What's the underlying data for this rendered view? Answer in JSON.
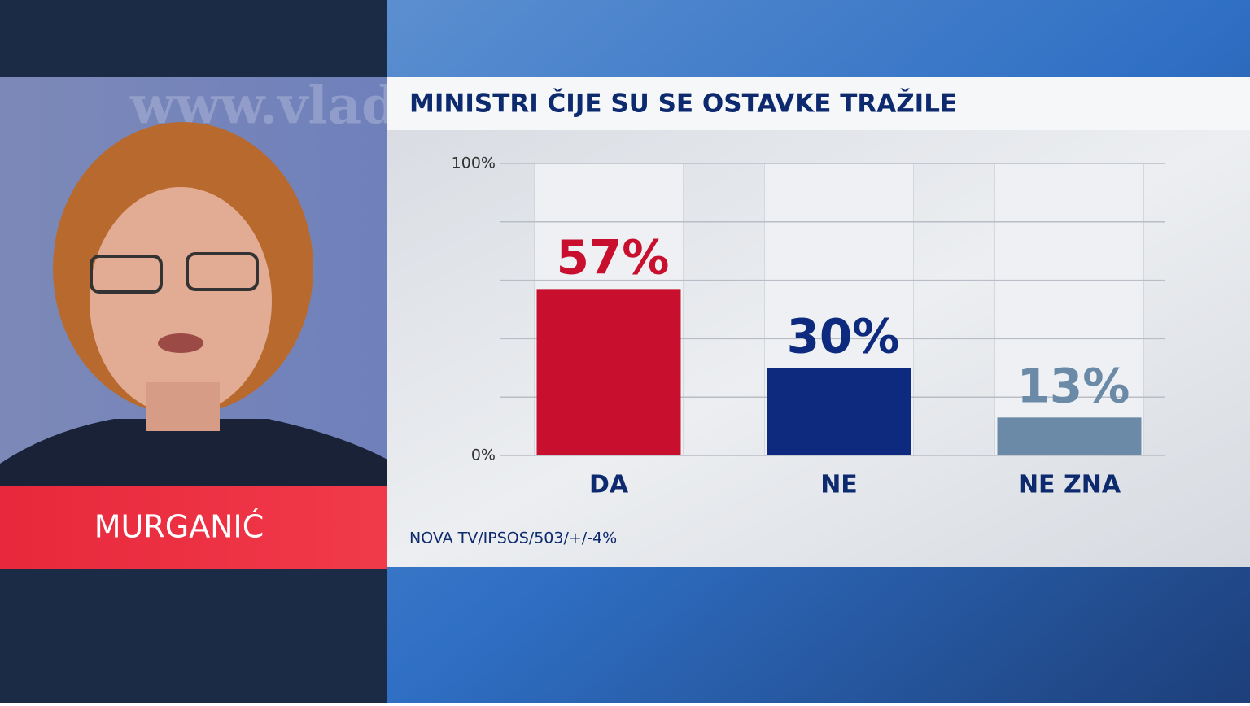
{
  "person": {
    "name": "MURGANIĆ",
    "background_text": "www.vlad"
  },
  "chart_data": {
    "type": "bar",
    "title": "MINISTRI ČIJE SU SE OSTAVKE TRAŽILE",
    "categories": [
      "DA",
      "NE",
      "NE ZNA"
    ],
    "values": [
      57,
      30,
      13
    ],
    "value_labels": [
      "57%",
      "30%",
      "13%"
    ],
    "colors": [
      "#c8102e",
      "#0d2a7e",
      "#6a8aa8"
    ],
    "ylim": [
      0,
      100
    ],
    "yticks": [
      {
        "value": 0,
        "label": "0%"
      },
      {
        "value": 100,
        "label": "100%"
      }
    ],
    "gridlines": [
      0,
      20,
      40,
      60,
      80,
      100
    ],
    "source": "NOVA TV/IPSOS/503/+/-4%"
  }
}
